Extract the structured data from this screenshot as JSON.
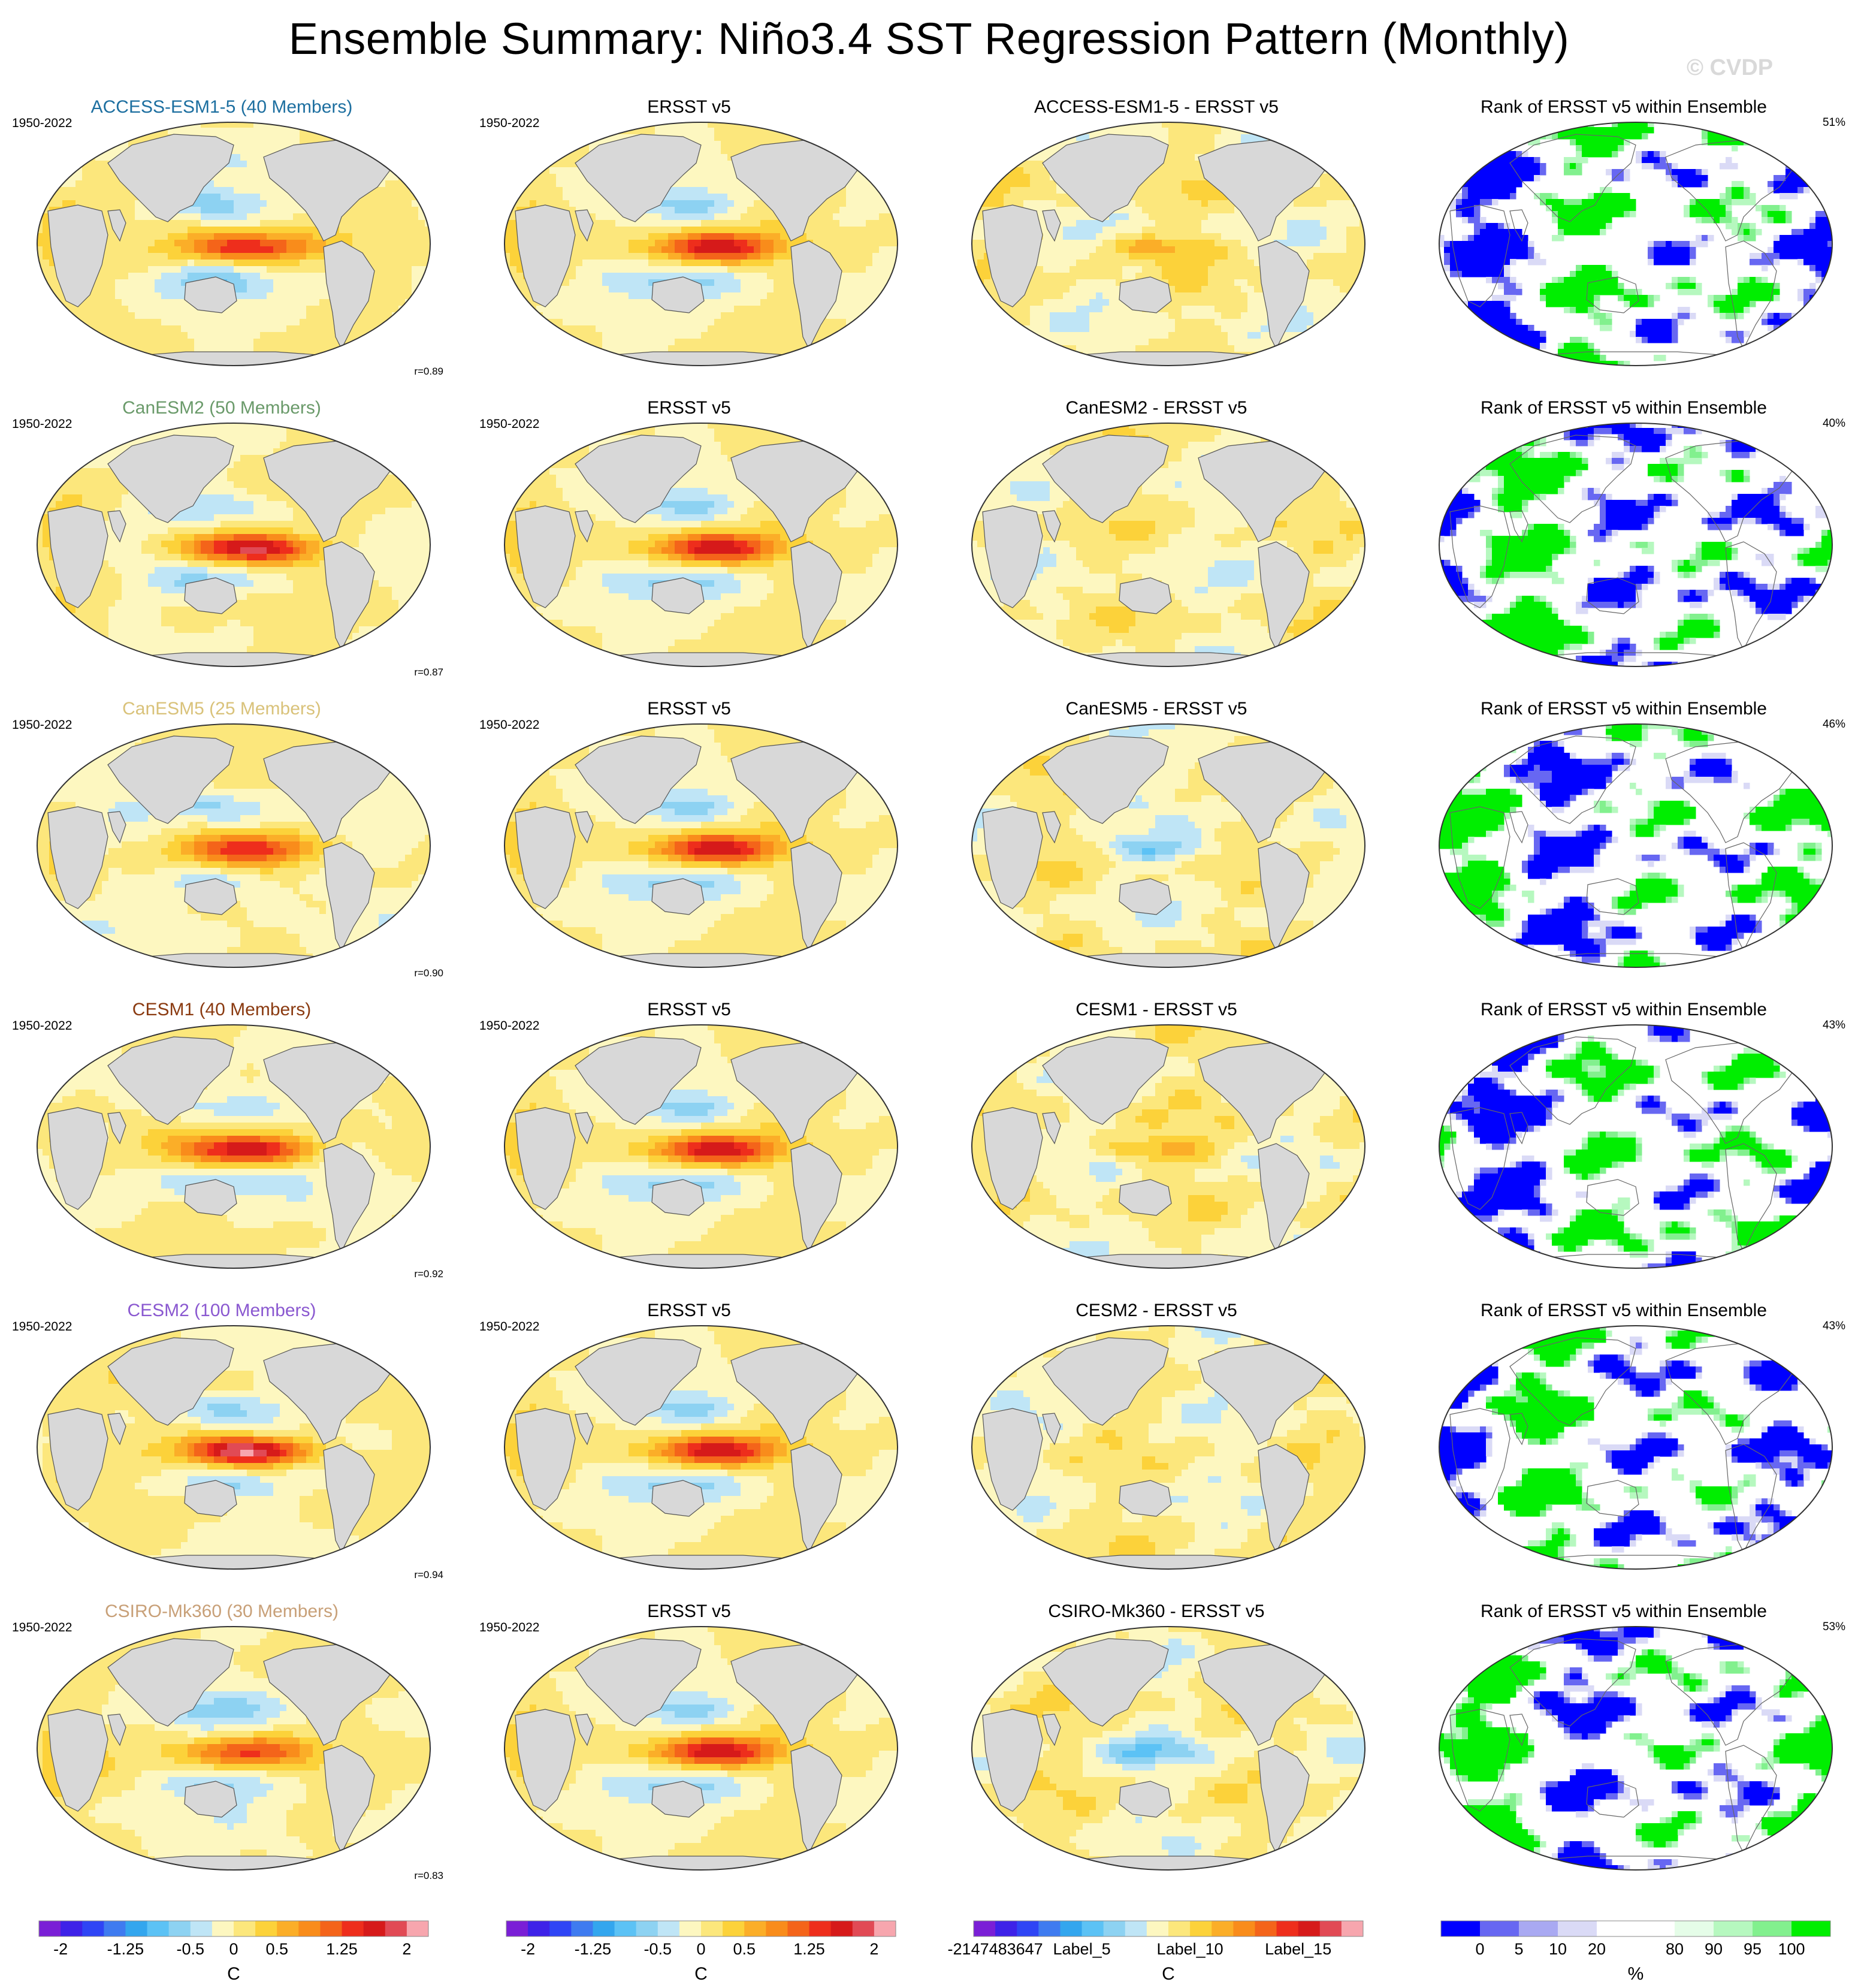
{
  "title": "Ensemble Summary: Niño3.4 SST Regression Pattern (Monthly)",
  "watermark": "© CVDP",
  "period": "1950-2022",
  "observation": "ERSST v5",
  "rank_title": "Rank of ERSST v5 within Ensemble",
  "colors": {
    "land": "#d8d8d8",
    "regression_palette": [
      "#7a1fd6",
      "#3e22e8",
      "#2f45f5",
      "#3f7bf0",
      "#33a6ee",
      "#5cc2f5",
      "#8dd2f2",
      "#bfe5f6",
      "#fdf7c0",
      "#fce77c",
      "#fcd23a",
      "#fbae28",
      "#f98c1b",
      "#f4641a",
      "#ee2e1c",
      "#d61a1a",
      "#e14a55",
      "#f7a6ae"
    ],
    "rank_palette": [
      "#0000ff",
      "#6767f2",
      "#a9a9f2",
      "#dadaf6",
      "#ffffff",
      "#ffffff",
      "#e5fde8",
      "#b6f8bf",
      "#82f08e",
      "#00ee00"
    ],
    "model_label_colors": [
      "#1d6fa0",
      "#6a9a6a",
      "#d9c27a",
      "#8a3a10",
      "#8a58d0",
      "#c8a078"
    ]
  },
  "rows": [
    {
      "model": "ACCESS-ESM1-5",
      "label": "ACCESS-ESM1-5 (40 Members)",
      "diff_title": "ACCESS-ESM1-5 - ERSST v5",
      "r": "r=0.89",
      "rank_pct": "51%",
      "amp": 1.55,
      "tilt": 0.0
    },
    {
      "model": "CanESM2",
      "label": "CanESM2 (50 Members)",
      "diff_title": "CanESM2 - ERSST v5",
      "r": "r=0.87",
      "rank_pct": "40%",
      "amp": 1.95,
      "tilt": 0.02
    },
    {
      "model": "CanESM5",
      "label": "CanESM5 (25 Members)",
      "diff_title": "CanESM5 - ERSST v5",
      "r": "r=0.90",
      "rank_pct": "46%",
      "amp": 1.35,
      "tilt": -0.02
    },
    {
      "model": "CESM1",
      "label": "CESM1 (40 Members)",
      "diff_title": "CESM1 - ERSST v5",
      "r": "r=0.92",
      "rank_pct": "43%",
      "amp": 1.7,
      "tilt": 0.01
    },
    {
      "model": "CESM2",
      "label": "CESM2 (100 Members)",
      "diff_title": "CESM2 - ERSST v5",
      "r": "r=0.94",
      "rank_pct": "43%",
      "amp": 2.2,
      "tilt": 0.03
    },
    {
      "model": "CSIRO-Mk360",
      "label": "CSIRO-Mk360 (30 Members)",
      "diff_title": "CSIRO-Mk360 - ERSST v5",
      "r": "r=0.83",
      "rank_pct": "53%",
      "amp": 1.3,
      "tilt": -0.01
    }
  ],
  "colorbars": [
    {
      "id": "model",
      "labels": [
        "-2",
        "-1.25",
        "-0.5",
        "0",
        "0.5",
        "1.25",
        "2"
      ],
      "unit": "C"
    },
    {
      "id": "obs",
      "labels": [
        "-2",
        "-1.25",
        "-0.5",
        "0",
        "0.5",
        "1.25",
        "2"
      ],
      "unit": "C"
    },
    {
      "id": "diff",
      "labels": [
        "-2147483647",
        "Label_5",
        "Label_10",
        "Label_15"
      ],
      "unit": "C"
    },
    {
      "id": "rank",
      "labels": [
        "0",
        "5",
        "10",
        "20",
        "80",
        "90",
        "95",
        "100"
      ],
      "unit": "%"
    }
  ]
}
